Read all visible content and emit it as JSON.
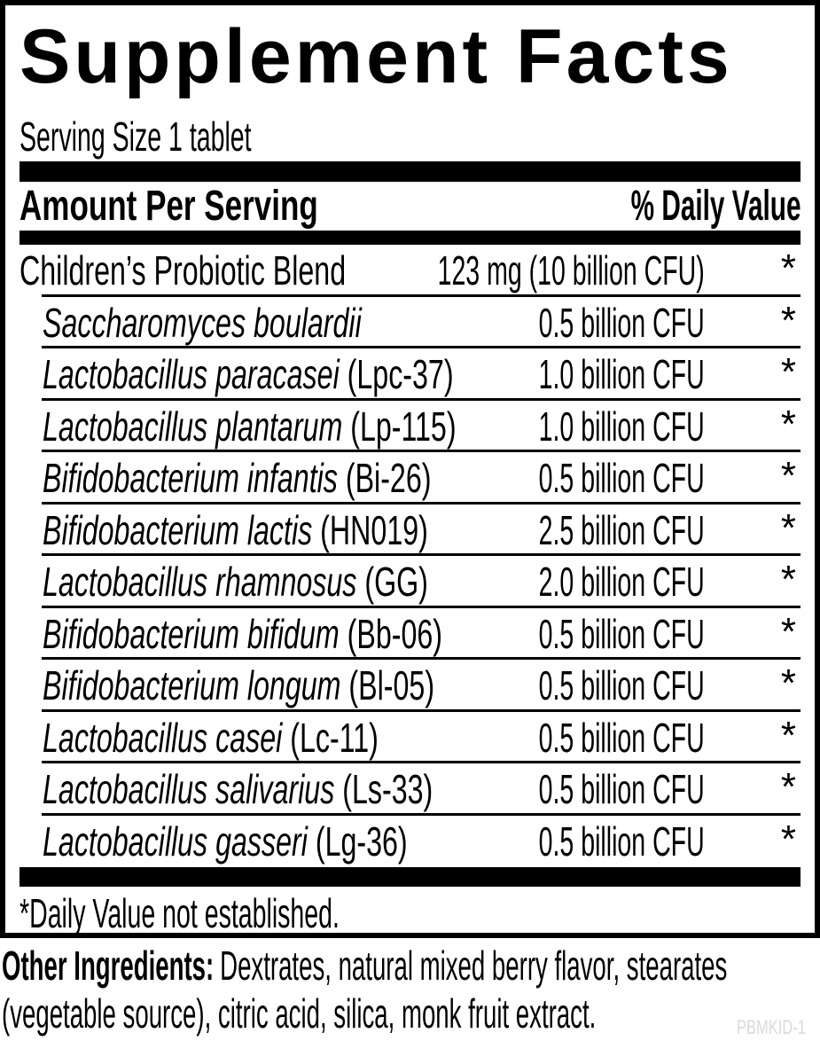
{
  "panel": {
    "title": "Supplement Facts",
    "serving_size": "Serving Size 1 tablet",
    "header": {
      "amount_label": "Amount Per Serving",
      "dv_label": "% Daily Value"
    },
    "rows": [
      {
        "name": "Children’s Probiotic Blend",
        "code": "",
        "amount": "123 mg (10 billion CFU)",
        "dv": "*",
        "indent": false,
        "italic": false
      },
      {
        "name": "Saccharomyces boulardii",
        "code": "",
        "amount": "0.5 billion CFU",
        "dv": "*",
        "indent": true,
        "italic": true
      },
      {
        "name": "Lactobacillus paracasei",
        "code": "(Lpc-37)",
        "amount": "1.0 billion CFU",
        "dv": "*",
        "indent": true,
        "italic": true
      },
      {
        "name": "Lactobacillus plantarum",
        "code": "(Lp-115)",
        "amount": "1.0 billion CFU",
        "dv": "*",
        "indent": true,
        "italic": true
      },
      {
        "name": "Bifidobacterium infantis",
        "code": "(Bi-26)",
        "amount": "0.5 billion CFU",
        "dv": "*",
        "indent": true,
        "italic": true
      },
      {
        "name": "Bifidobacterium lactis",
        "code": "(HN019)",
        "amount": "2.5 billion CFU",
        "dv": "*",
        "indent": true,
        "italic": true
      },
      {
        "name": "Lactobacillus rhamnosus",
        "code": "(GG)",
        "amount": "2.0 billion CFU",
        "dv": "*",
        "indent": true,
        "italic": true
      },
      {
        "name": "Bifidobacterium bifidum",
        "code": "(Bb-06)",
        "amount": "0.5 billion CFU",
        "dv": "*",
        "indent": true,
        "italic": true
      },
      {
        "name": "Bifidobacterium longum",
        "code": "(Bl-05)",
        "amount": "0.5 billion CFU",
        "dv": "*",
        "indent": true,
        "italic": true
      },
      {
        "name": "Lactobacillus casei",
        "code": "(Lc-11)",
        "amount": "0.5 billion CFU",
        "dv": "*",
        "indent": true,
        "italic": true
      },
      {
        "name": "Lactobacillus salivarius",
        "code": "(Ls-33)",
        "amount": "0.5 billion CFU",
        "dv": "*",
        "indent": true,
        "italic": true
      },
      {
        "name": "Lactobacillus gasseri",
        "code": "(Lg-36)",
        "amount": "0.5 billion CFU",
        "dv": "*",
        "indent": true,
        "italic": true
      }
    ],
    "footnote": "*Daily Value not established."
  },
  "other_ingredients": {
    "label": "Other Ingredients:",
    "line1": "Dextrates, natural mixed berry flavor, stearates",
    "line2": "(vegetable source), citric acid, silica, monk fruit extract."
  },
  "watermark": "PBMKID-1",
  "colors": {
    "ink": "#000000",
    "paper": "#ffffff",
    "watermark": "#d9d9d9"
  }
}
